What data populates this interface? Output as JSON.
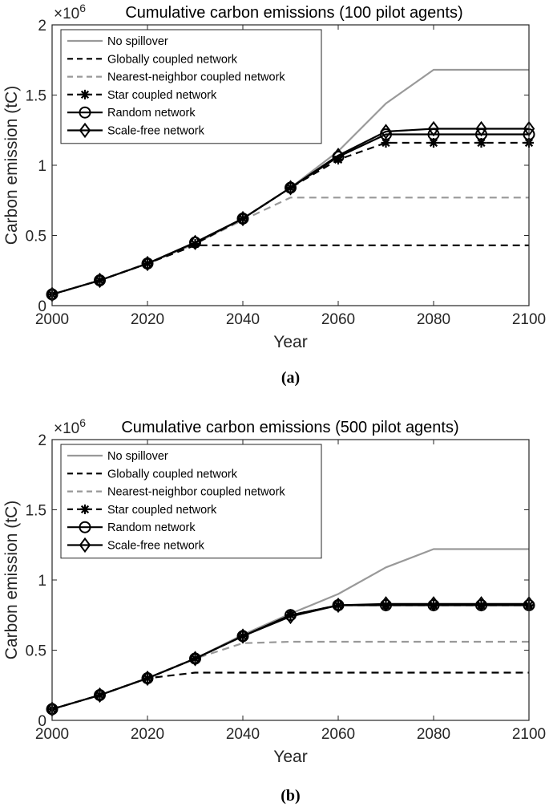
{
  "chart_data": [
    {
      "type": "line",
      "title": "Cumulative carbon emissions (100 pilot agents)",
      "xlabel": "Year",
      "ylabel": "Carbon emission (tC)",
      "y_multiplier": "×10",
      "y_exponent": "6",
      "caption": "(a)",
      "xlim": [
        2000,
        2100
      ],
      "ylim": [
        0,
        2
      ],
      "xticks": [
        2000,
        2020,
        2040,
        2060,
        2080,
        2100
      ],
      "yticks": [
        0,
        0.5,
        1,
        1.5,
        2
      ],
      "xtick_labels": [
        "2000",
        "2020",
        "2040",
        "2060",
        "2080",
        "2100"
      ],
      "ytick_labels": [
        "0",
        "0.5",
        "1",
        "1.5",
        "2"
      ],
      "x": [
        2000,
        2010,
        2020,
        2030,
        2040,
        2050,
        2060,
        2070,
        2080,
        2090,
        2100
      ],
      "legend_position": "top-left",
      "series": [
        {
          "name": "No spillover",
          "color": "#999999",
          "dash": "solid",
          "marker": "none",
          "values": [
            0.08,
            0.18,
            0.3,
            0.44,
            0.62,
            0.84,
            1.1,
            1.44,
            1.68,
            1.68,
            1.68
          ]
        },
        {
          "name": "Globally coupled network",
          "color": "#000000",
          "dash": "dashed",
          "marker": "none",
          "values": [
            0.08,
            0.18,
            0.3,
            0.43,
            0.43,
            0.43,
            0.43,
            0.43,
            0.43,
            0.43,
            0.43
          ]
        },
        {
          "name": "Nearest-neighbor coupled network",
          "color": "#999999",
          "dash": "dashed",
          "marker": "none",
          "values": [
            0.08,
            0.18,
            0.3,
            0.44,
            0.61,
            0.77,
            0.77,
            0.77,
            0.77,
            0.77,
            0.77
          ]
        },
        {
          "name": "Star coupled network",
          "color": "#000000",
          "dash": "dashed",
          "marker": "star",
          "values": [
            0.08,
            0.18,
            0.3,
            0.44,
            0.62,
            0.84,
            1.04,
            1.16,
            1.16,
            1.16,
            1.16
          ]
        },
        {
          "name": "Random network",
          "color": "#000000",
          "dash": "solid",
          "marker": "circle",
          "values": [
            0.08,
            0.18,
            0.3,
            0.45,
            0.62,
            0.84,
            1.06,
            1.22,
            1.22,
            1.22,
            1.22
          ]
        },
        {
          "name": "Scale-free network",
          "color": "#000000",
          "dash": "solid",
          "marker": "diamond",
          "values": [
            0.08,
            0.18,
            0.3,
            0.45,
            0.62,
            0.84,
            1.07,
            1.24,
            1.26,
            1.26,
            1.26
          ]
        }
      ]
    },
    {
      "type": "line",
      "title": "Cumulative carbon emissions (500 pilot agents)",
      "xlabel": "Year",
      "ylabel": "Carbon emission (tC)",
      "y_multiplier": "×10",
      "y_exponent": "6",
      "caption": "(b)",
      "xlim": [
        2000,
        2100
      ],
      "ylim": [
        0,
        2
      ],
      "xticks": [
        2000,
        2020,
        2040,
        2060,
        2080,
        2100
      ],
      "yticks": [
        0,
        0.5,
        1,
        1.5,
        2
      ],
      "xtick_labels": [
        "2000",
        "2020",
        "2040",
        "2060",
        "2080",
        "2100"
      ],
      "ytick_labels": [
        "0",
        "0.5",
        "1",
        "1.5",
        "2"
      ],
      "x": [
        2000,
        2010,
        2020,
        2030,
        2040,
        2050,
        2060,
        2070,
        2080,
        2090,
        2100
      ],
      "legend_position": "top-left",
      "series": [
        {
          "name": "No spillover",
          "color": "#999999",
          "dash": "solid",
          "marker": "none",
          "values": [
            0.08,
            0.18,
            0.3,
            0.44,
            0.61,
            0.76,
            0.9,
            1.09,
            1.22,
            1.22,
            1.22
          ]
        },
        {
          "name": "Globally coupled network",
          "color": "#000000",
          "dash": "dashed",
          "marker": "none",
          "values": [
            0.08,
            0.18,
            0.3,
            0.34,
            0.34,
            0.34,
            0.34,
            0.34,
            0.34,
            0.34,
            0.34
          ]
        },
        {
          "name": "Nearest-neighbor coupled network",
          "color": "#999999",
          "dash": "dashed",
          "marker": "none",
          "values": [
            0.08,
            0.18,
            0.3,
            0.44,
            0.55,
            0.56,
            0.56,
            0.56,
            0.56,
            0.56,
            0.56
          ]
        },
        {
          "name": "Star coupled network",
          "color": "#000000",
          "dash": "dashed",
          "marker": "star",
          "values": [
            0.08,
            0.18,
            0.3,
            0.44,
            0.6,
            0.75,
            0.82,
            0.82,
            0.82,
            0.82,
            0.82
          ]
        },
        {
          "name": "Random network",
          "color": "#000000",
          "dash": "solid",
          "marker": "circle",
          "values": [
            0.08,
            0.18,
            0.3,
            0.44,
            0.6,
            0.75,
            0.82,
            0.82,
            0.82,
            0.82,
            0.82
          ]
        },
        {
          "name": "Scale-free network",
          "color": "#000000",
          "dash": "solid",
          "marker": "diamond",
          "values": [
            0.08,
            0.18,
            0.3,
            0.44,
            0.6,
            0.74,
            0.82,
            0.83,
            0.83,
            0.83,
            0.83
          ]
        }
      ]
    }
  ]
}
